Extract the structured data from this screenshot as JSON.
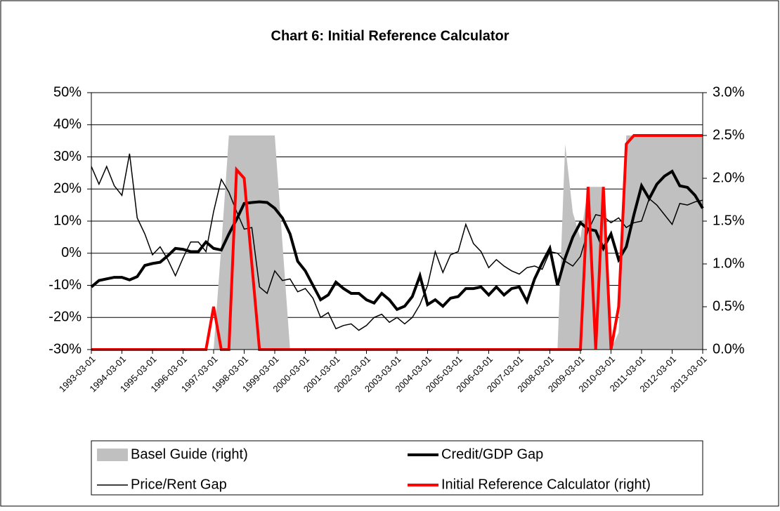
{
  "chart_data": {
    "type": "line",
    "title": "Chart 6: Initial Reference Calculator",
    "categories": [
      "1993-03-01",
      null,
      null,
      null,
      "1994-03-01",
      null,
      null,
      null,
      "1995-03-01",
      null,
      null,
      null,
      "1996-03-01",
      null,
      null,
      null,
      "1997-03-01",
      null,
      null,
      null,
      "1998-03-01",
      null,
      null,
      null,
      "1999-03-01",
      null,
      null,
      null,
      "2000-03-01",
      null,
      null,
      null,
      "2001-03-01",
      null,
      null,
      null,
      "2002-03-01",
      null,
      null,
      null,
      "2003-03-01",
      null,
      null,
      null,
      "2004-03-01",
      null,
      null,
      null,
      "2005-03-01",
      null,
      null,
      null,
      "2006-03-01",
      null,
      null,
      null,
      "2007-03-01",
      null,
      null,
      null,
      "2008-03-01",
      null,
      null,
      null,
      "2009-03-01",
      null,
      null,
      null,
      "2010-03-01",
      null,
      null,
      null,
      "2011-03-01",
      null,
      null,
      null,
      "2012-03-01",
      null,
      null,
      null,
      "2013-03-01"
    ],
    "series": [
      {
        "name": "Basel Guide (right)",
        "type": "area",
        "axis": "y2",
        "color": "#c0c0c0",
        "width": 0,
        "values": [
          0,
          0,
          0,
          0,
          0,
          0,
          0,
          0,
          0,
          0,
          0,
          0,
          0,
          0,
          0,
          0,
          0,
          1.2,
          2.5,
          2.5,
          2.5,
          2.5,
          2.5,
          2.5,
          2.5,
          1.25,
          0,
          0,
          0,
          0,
          0,
          0,
          0,
          0,
          0,
          0,
          0,
          0,
          0,
          0,
          0,
          0,
          0,
          0,
          0,
          0,
          0,
          0,
          0,
          0,
          0,
          0,
          0,
          0,
          0,
          0,
          0,
          0,
          0,
          0,
          0,
          0,
          2.4,
          1.6,
          1.3,
          1.9,
          1.9,
          1.9,
          0,
          0.2,
          2.5,
          2.5,
          2.5,
          2.5,
          2.5,
          2.5,
          2.5,
          2.5,
          2.5,
          2.5,
          2.5
        ]
      },
      {
        "name": "Price/Rent Gap",
        "type": "line",
        "color": "#000000",
        "width": 1.5,
        "values": [
          27,
          21.5,
          27,
          21,
          18,
          31,
          11,
          6,
          -0.5,
          2,
          -2,
          -7,
          -1.5,
          3.5,
          3.5,
          0.5,
          13,
          23,
          19,
          13,
          7.5,
          8,
          -10.5,
          -12.5,
          -5.5,
          -8.5,
          -8,
          -12,
          -11,
          -14,
          -20,
          -18.5,
          -23.5,
          -22.5,
          -22,
          -24,
          -22.5,
          -20,
          -19,
          -21.5,
          -20,
          -22,
          -20,
          -16,
          -10,
          0.5,
          -6,
          -0.5,
          0.5,
          9,
          3,
          0.5,
          -4.5,
          -2,
          -4,
          -5.5,
          -6.5,
          -4.5,
          -4,
          -5,
          0.5,
          0,
          -2.5,
          -4,
          -1,
          7,
          12,
          11.5,
          9.5,
          11,
          8,
          9.5,
          10,
          17,
          15,
          12,
          9,
          15.5,
          15,
          16,
          16.5
        ]
      },
      {
        "name": "Credit/GDP Gap",
        "type": "line",
        "color": "#000000",
        "width": 4,
        "values": [
          -10.5,
          -8.5,
          -8,
          -7.5,
          -7.5,
          -8.3,
          -7.3,
          -3.8,
          -3.2,
          -2.8,
          -0.8,
          1.5,
          1.2,
          0.5,
          0.5,
          3.5,
          1.5,
          1,
          6,
          10.5,
          15.5,
          15.8,
          16,
          15.8,
          14,
          11,
          6,
          -2.5,
          -5.5,
          -10,
          -14.5,
          -13,
          -9,
          -11,
          -12.5,
          -12.5,
          -14.5,
          -15.5,
          -12.5,
          -14.5,
          -17.5,
          -16.5,
          -13.5,
          -7,
          -16,
          -14.5,
          -16.5,
          -14,
          -13.5,
          -11,
          -11,
          -10.5,
          -13,
          -10.5,
          -13,
          -11,
          -10.5,
          -15,
          -8,
          -3,
          1.5,
          -10,
          -1.5,
          5,
          9.5,
          7.5,
          7,
          1.5,
          6,
          -2,
          2,
          12,
          21,
          17,
          21.5,
          24,
          25.5,
          21,
          20.5,
          18,
          14
        ]
      },
      {
        "name": "Initial Reference Calculator (right)",
        "type": "line",
        "axis": "y2",
        "color": "#ff0000",
        "width": 4,
        "values": [
          0,
          0,
          0,
          0,
          0,
          0,
          0,
          0,
          0,
          0,
          0,
          0,
          0,
          0,
          0,
          0,
          0.5,
          0,
          0,
          2.1,
          2.0,
          1.0,
          0,
          0,
          0,
          0,
          0,
          0,
          0,
          0,
          0,
          0,
          0,
          0,
          0,
          0,
          0,
          0,
          0,
          0,
          0,
          0,
          0,
          0,
          0,
          0,
          0,
          0,
          0,
          0,
          0,
          0,
          0,
          0,
          0,
          0,
          0,
          0,
          0,
          0,
          0,
          0,
          0,
          0,
          0,
          1.9,
          0,
          1.9,
          0,
          0.5,
          2.4,
          2.5,
          2.5,
          2.5,
          2.5,
          2.5,
          2.5,
          2.5,
          2.5,
          2.5,
          2.5
        ]
      }
    ],
    "ylim": [
      -30,
      50
    ],
    "yticks": [
      {
        "value": -30,
        "label": "-30%"
      },
      {
        "value": -20,
        "label": "-20%"
      },
      {
        "value": -10,
        "label": "-10%"
      },
      {
        "value": 0,
        "label": "0%"
      },
      {
        "value": 10,
        "label": "10%"
      },
      {
        "value": 20,
        "label": "20%"
      },
      {
        "value": 30,
        "label": "30%"
      },
      {
        "value": 40,
        "label": "40%"
      },
      {
        "value": 50,
        "label": "50%"
      }
    ],
    "y2lim": [
      0,
      3
    ],
    "y2ticks": [
      {
        "value": 0,
        "label": "0.0%"
      },
      {
        "value": 0.5,
        "label": "0.5%"
      },
      {
        "value": 1,
        "label": "1.0%"
      },
      {
        "value": 1.5,
        "label": "1.5%"
      },
      {
        "value": 2,
        "label": "2.0%"
      },
      {
        "value": 2.5,
        "label": "2.5%"
      },
      {
        "value": 3,
        "label": "3.0%"
      }
    ],
    "grid": true,
    "legend": "bottom"
  }
}
